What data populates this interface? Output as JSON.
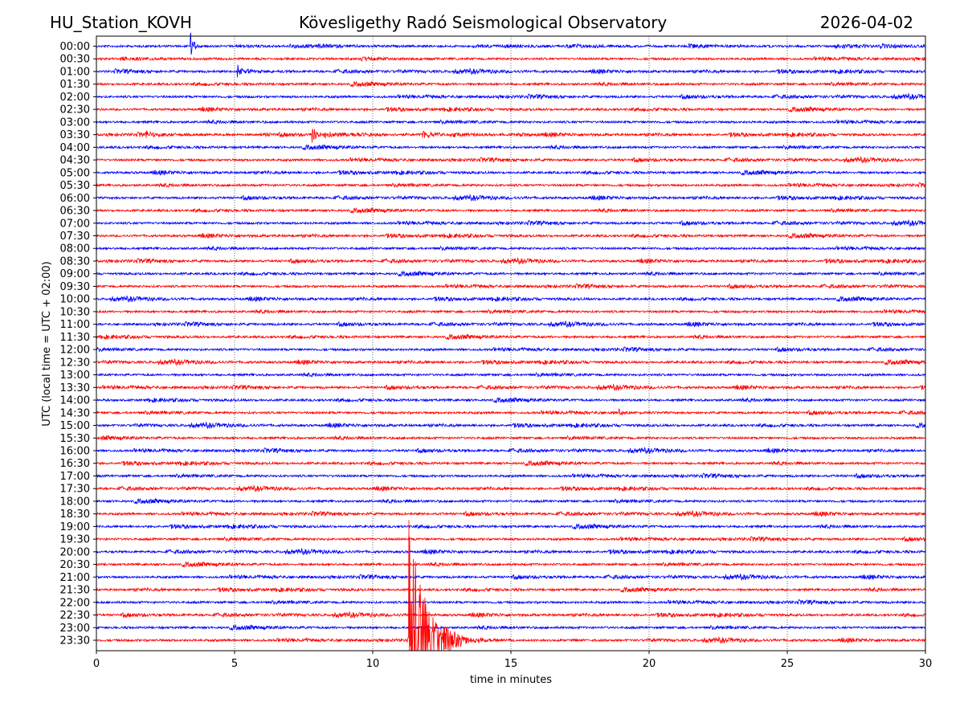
{
  "header": {
    "station": "HU_Station_KOVH",
    "observatory": "Kövesligethy Radó Seismological Observatory",
    "date": "2026-04-02"
  },
  "chart_data": {
    "type": "line",
    "subtype": "helicorder",
    "xlabel": "time in minutes",
    "ylabel": "UTC (local time = UTC + 02:00)",
    "xlim": [
      0,
      30
    ],
    "xticks": [
      "0",
      "5",
      "10",
      "15",
      "20",
      "25",
      "30"
    ],
    "grid": "vertical dotted at x ticks",
    "row_labels": [
      "00:00",
      "00:30",
      "01:00",
      "01:30",
      "02:00",
      "02:30",
      "03:00",
      "03:30",
      "04:00",
      "04:30",
      "05:00",
      "05:30",
      "06:00",
      "06:30",
      "07:00",
      "07:30",
      "08:00",
      "08:30",
      "09:00",
      "09:30",
      "10:00",
      "10:30",
      "11:00",
      "11:30",
      "12:00",
      "12:30",
      "13:00",
      "13:30",
      "14:00",
      "14:30",
      "15:00",
      "15:30",
      "16:00",
      "16:30",
      "17:00",
      "17:30",
      "18:00",
      "18:30",
      "19:00",
      "19:30",
      "20:00",
      "20:30",
      "21:00",
      "21:30",
      "22:00",
      "22:30",
      "23:00",
      "23:30"
    ],
    "series_colors": [
      "#0000ff",
      "#ff0000"
    ],
    "events": [
      {
        "row": "00:00",
        "minute": 3.4,
        "amplitude": 1.0,
        "duration": 0.6
      },
      {
        "row": "01:00",
        "minute": 5.1,
        "amplitude": 0.45,
        "duration": 0.9
      },
      {
        "row": "03:30",
        "minute": 1.8,
        "amplitude": 0.45,
        "duration": 0.4
      },
      {
        "row": "03:30",
        "minute": 7.8,
        "amplitude": 0.55,
        "duration": 1.0
      },
      {
        "row": "03:30",
        "minute": 11.8,
        "amplitude": 0.3,
        "duration": 2.0
      },
      {
        "row": "14:30",
        "minute": 18.9,
        "amplitude": 0.35,
        "duration": 0.6
      },
      {
        "row": "23:30",
        "minute": 11.3,
        "amplitude": 9.5,
        "duration": 2.5
      }
    ]
  }
}
